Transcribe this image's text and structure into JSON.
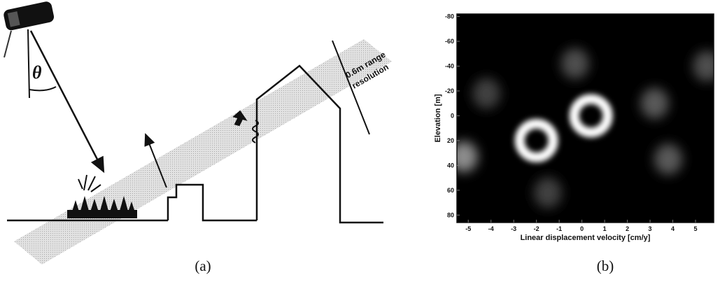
{
  "panel_a": {
    "angle_symbol": "θ",
    "range_text_line1": "0.6m range",
    "range_text_line2": "resolution",
    "caption": "(a)"
  },
  "panel_b": {
    "caption": "(b)",
    "chart_data": {
      "type": "heatmap",
      "xlabel": "Linear displacement velocity [cm/y]",
      "ylabel": "Elevation [m]",
      "xlim": [
        -5.5,
        5.8
      ],
      "ylim": [
        -82,
        86
      ],
      "y_inverted": true,
      "x_ticks": [
        -5,
        -4,
        -3,
        -2,
        -1,
        0,
        1,
        2,
        3,
        4,
        5
      ],
      "y_ticks": [
        -80,
        -60,
        -40,
        -20,
        0,
        20,
        40,
        60,
        80
      ],
      "colormap": "grayscale",
      "background_color": "#000000",
      "peaks": [
        {
          "x": -2.0,
          "y": 20,
          "intensity": 1.0,
          "shape": "ring"
        },
        {
          "x": 0.4,
          "y": 0,
          "intensity": 1.0,
          "shape": "ring"
        },
        {
          "x": -5.2,
          "y": 33,
          "intensity": 0.55,
          "shape": "blob"
        },
        {
          "x": 3.2,
          "y": -10,
          "intensity": 0.35,
          "shape": "blob"
        },
        {
          "x": 3.8,
          "y": 35,
          "intensity": 0.35,
          "shape": "blob"
        },
        {
          "x": -0.3,
          "y": -42,
          "intensity": 0.3,
          "shape": "blob"
        },
        {
          "x": 5.5,
          "y": -40,
          "intensity": 0.3,
          "shape": "blob"
        },
        {
          "x": -1.5,
          "y": 62,
          "intensity": 0.25,
          "shape": "blob"
        },
        {
          "x": -4.2,
          "y": -18,
          "intensity": 0.25,
          "shape": "blob"
        }
      ]
    }
  }
}
